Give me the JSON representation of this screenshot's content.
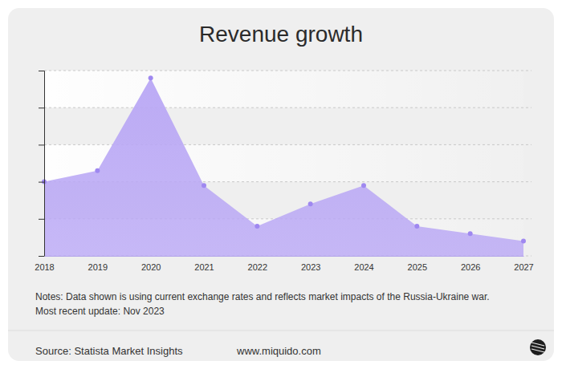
{
  "chart_data": {
    "type": "area",
    "title": "Revenue growth",
    "categories": [
      "2018",
      "2019",
      "2020",
      "2021",
      "2022",
      "2023",
      "2024",
      "2025",
      "2026",
      "2027"
    ],
    "values": [
      2.0,
      2.3,
      4.8,
      1.9,
      0.8,
      1.4,
      1.9,
      0.8,
      0.6,
      0.4
    ],
    "color": "#b9a7f5",
    "marker": "circle",
    "ylim": [
      0,
      5
    ],
    "yticks": [
      0,
      1,
      2,
      3,
      4,
      5
    ],
    "grid": true,
    "tick_labels": "x",
    "annotations": [
      "Notes: Data shown is using current exchange rates and reflects market impacts of the Russia-Ukraine war.",
      "Most recent update: Nov 2023"
    ],
    "source": "Source: Statista Market Insights",
    "website": "www.miquido.com"
  }
}
